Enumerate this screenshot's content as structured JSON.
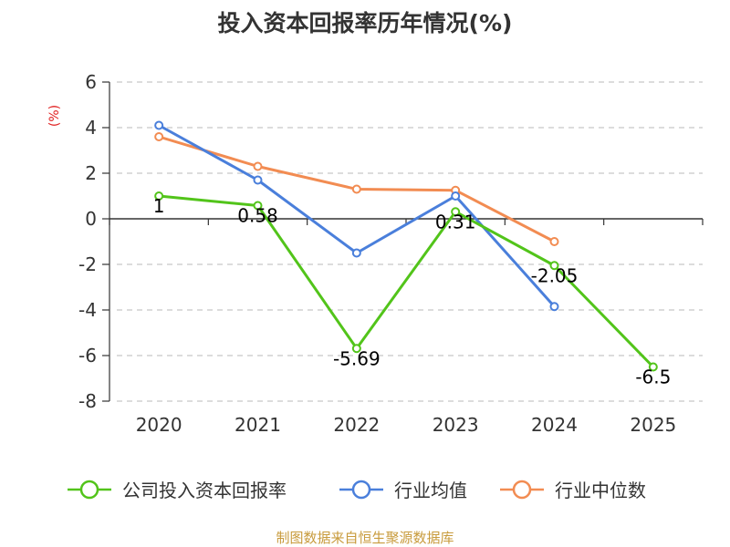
{
  "chart_data": {
    "type": "line",
    "title": "投入资本回报率历年情况(%)",
    "ylabel": "(%)",
    "xlabel": "",
    "categories": [
      "2020",
      "2021",
      "2022",
      "2023",
      "2024",
      "2025"
    ],
    "ylim": [
      -8,
      6
    ],
    "yticks": [
      6,
      4,
      2,
      0,
      -2,
      -4,
      -6,
      -8
    ],
    "ytick_labels": [
      "6",
      "4",
      "2",
      "0",
      "-2",
      "-4",
      "-6",
      "-8"
    ],
    "grid": true,
    "legend_position": "bottom",
    "series": [
      {
        "name": "公司投入资本回报率",
        "color": "#52c41a",
        "values": [
          1,
          0.58,
          -5.69,
          0.31,
          -2.05,
          -6.5
        ],
        "labels": [
          "1",
          "0.58",
          "-5.69",
          "0.31",
          "-2.05",
          "-6.5"
        ]
      },
      {
        "name": "行业均值",
        "color": "#4a7fdb",
        "values": [
          4.1,
          1.7,
          -1.5,
          1.0,
          -3.85,
          null
        ]
      },
      {
        "name": "行业中位数",
        "color": "#f28c52",
        "values": [
          3.6,
          2.3,
          1.3,
          1.25,
          -1.0,
          null
        ]
      }
    ]
  },
  "source_text": "制图数据来自恒生聚源数据库",
  "colors": {
    "title": "#333333",
    "axis": "#333333",
    "grid": "#c8c8c8",
    "unit": "#e02020",
    "source": "#c89b3c"
  }
}
